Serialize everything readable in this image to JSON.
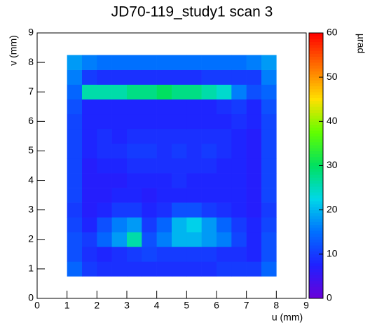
{
  "chart_data": {
    "type": "heatmap",
    "title": "JD70-119_study1 scan 3",
    "x_label": "u (mm)",
    "y_label": "v (mm)",
    "z_label": "µrad",
    "xlim": [
      0,
      9
    ],
    "ylim": [
      0,
      9
    ],
    "zlim": [
      0,
      60
    ],
    "xticks": [
      0,
      1,
      2,
      3,
      4,
      5,
      6,
      7,
      8,
      9
    ],
    "yticks": [
      0,
      1,
      2,
      3,
      4,
      5,
      6,
      7,
      8,
      9
    ],
    "zticks": [
      0,
      10,
      20,
      30,
      40,
      50,
      60
    ],
    "colorscale": [
      "#6a00d8",
      "#2020ff",
      "#0070ff",
      "#00d8e8",
      "#00e060",
      "#60ff00",
      "#ffe000",
      "#ff7000",
      "#ff0000"
    ],
    "xbins": [
      1,
      1.5,
      2,
      2.5,
      3,
      3.5,
      4,
      4.5,
      5,
      5.5,
      6,
      6.5,
      7,
      7.5,
      8
    ],
    "ybins": [
      0.75,
      1.25,
      1.75,
      2.25,
      2.75,
      3.25,
      3.75,
      4.25,
      4.75,
      5.25,
      5.75,
      6.25,
      6.75,
      7.25,
      7.75,
      8.25
    ],
    "z": [
      [
        14,
        10,
        9,
        9,
        9,
        9,
        9,
        9,
        9,
        9,
        10,
        10,
        10,
        14
      ],
      [
        12,
        9,
        8,
        9,
        10,
        11,
        10,
        10,
        10,
        10,
        9,
        9,
        8,
        12
      ],
      [
        12,
        10,
        14,
        18,
        26,
        12,
        16,
        20,
        20,
        18,
        16,
        11,
        8,
        12
      ],
      [
        11,
        8,
        12,
        16,
        18,
        10,
        14,
        20,
        22,
        18,
        14,
        10,
        8,
        11
      ],
      [
        10,
        7,
        8,
        10,
        10,
        8,
        9,
        12,
        12,
        10,
        9,
        8,
        7,
        10
      ],
      [
        11,
        7,
        7,
        8,
        8,
        7,
        8,
        8,
        8,
        8,
        8,
        8,
        7,
        11
      ],
      [
        11,
        7,
        7,
        7,
        8,
        8,
        8,
        9,
        8,
        8,
        8,
        8,
        7,
        11
      ],
      [
        11,
        7,
        8,
        8,
        9,
        9,
        9,
        9,
        9,
        9,
        8,
        8,
        7,
        11
      ],
      [
        11,
        8,
        9,
        9,
        10,
        10,
        9,
        10,
        9,
        10,
        9,
        8,
        7,
        11
      ],
      [
        11,
        8,
        9,
        8,
        9,
        9,
        9,
        9,
        9,
        9,
        9,
        8,
        7,
        11
      ],
      [
        11,
        8,
        8,
        8,
        8,
        8,
        8,
        8,
        8,
        8,
        8,
        9,
        8,
        11
      ],
      [
        12,
        8,
        8,
        8,
        8,
        8,
        8,
        8,
        8,
        8,
        9,
        10,
        8,
        12
      ],
      [
        14,
        26,
        26,
        26,
        28,
        28,
        30,
        28,
        28,
        26,
        24,
        16,
        12,
        14
      ],
      [
        16,
        10,
        9,
        9,
        9,
        9,
        9,
        9,
        9,
        10,
        10,
        10,
        10,
        16
      ],
      [
        18,
        16,
        15,
        15,
        15,
        15,
        15,
        15,
        15,
        15,
        15,
        15,
        16,
        18
      ]
    ]
  }
}
